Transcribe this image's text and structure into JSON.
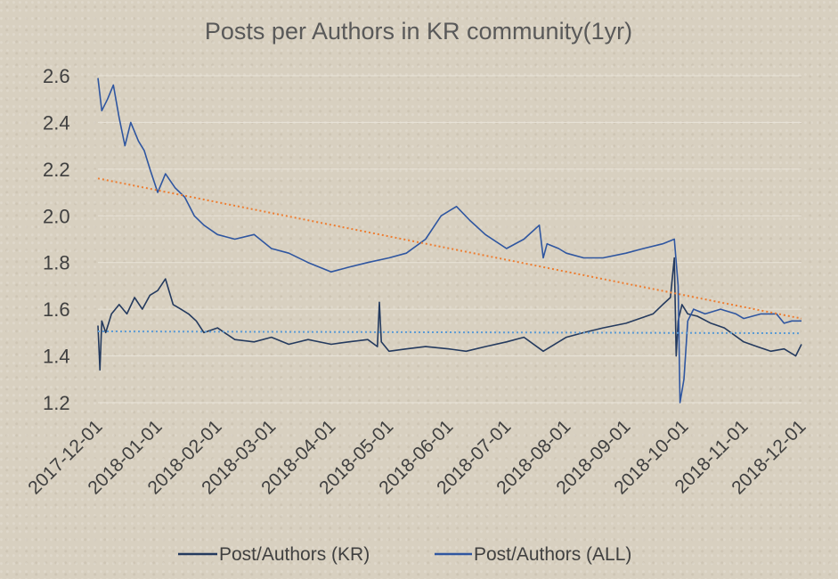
{
  "chart_data": {
    "type": "line",
    "title": "Posts per Authors in KR community(1yr)",
    "xlabel": "",
    "ylabel": "",
    "ylim": [
      1.2,
      2.6
    ],
    "yticks": [
      "1.2",
      "1.4",
      "1.6",
      "1.8",
      "2.0",
      "2.2",
      "2.4",
      "2.6"
    ],
    "xticks": [
      "2017-12-01",
      "2018-01-01",
      "2018-02-01",
      "2018-03-01",
      "2018-04-01",
      "2018-05-01",
      "2018-06-01",
      "2018-07-01",
      "2018-08-01",
      "2018-09-01",
      "2018-10-01",
      "2018-11-01",
      "2018-12-01"
    ],
    "grid": true,
    "legend_position": "bottom",
    "colors": {
      "kr": "#243a5e",
      "all": "#2f56a0",
      "trend_kr": "#5b9bd5",
      "trend_all": "#ed7d31"
    },
    "series": [
      {
        "name": "Post/Authors (KR)",
        "key": "kr",
        "x": [
          "2017-12-01",
          "2017-12-02",
          "2017-12-03",
          "2017-12-05",
          "2017-12-08",
          "2017-12-12",
          "2017-12-16",
          "2017-12-20",
          "2017-12-24",
          "2017-12-28",
          "2018-01-01",
          "2018-01-05",
          "2018-01-09",
          "2018-01-13",
          "2018-01-17",
          "2018-01-21",
          "2018-01-25",
          "2018-02-01",
          "2018-02-10",
          "2018-02-20",
          "2018-03-01",
          "2018-03-10",
          "2018-03-20",
          "2018-04-01",
          "2018-04-10",
          "2018-04-20",
          "2018-04-25",
          "2018-04-26",
          "2018-04-27",
          "2018-05-01",
          "2018-05-10",
          "2018-05-20",
          "2018-06-01",
          "2018-06-10",
          "2018-06-20",
          "2018-07-01",
          "2018-07-10",
          "2018-07-20",
          "2018-08-01",
          "2018-08-10",
          "2018-08-20",
          "2018-09-01",
          "2018-09-08",
          "2018-09-15",
          "2018-09-20",
          "2018-09-24",
          "2018-09-26",
          "2018-09-27",
          "2018-09-28",
          "2018-09-30",
          "2018-10-03",
          "2018-10-08",
          "2018-10-15",
          "2018-10-22",
          "2018-11-01",
          "2018-11-08",
          "2018-11-15",
          "2018-11-22",
          "2018-11-28",
          "2018-12-01"
        ],
        "y": [
          1.53,
          1.34,
          1.55,
          1.5,
          1.58,
          1.62,
          1.58,
          1.65,
          1.6,
          1.66,
          1.68,
          1.73,
          1.62,
          1.6,
          1.58,
          1.55,
          1.5,
          1.52,
          1.47,
          1.46,
          1.48,
          1.45,
          1.47,
          1.45,
          1.46,
          1.47,
          1.44,
          1.63,
          1.46,
          1.42,
          1.43,
          1.44,
          1.43,
          1.42,
          1.44,
          1.46,
          1.48,
          1.42,
          1.48,
          1.5,
          1.52,
          1.54,
          1.56,
          1.58,
          1.62,
          1.65,
          1.82,
          1.4,
          1.55,
          1.62,
          1.58,
          1.57,
          1.54,
          1.52,
          1.46,
          1.44,
          1.42,
          1.43,
          1.4,
          1.45
        ]
      },
      {
        "name": "Post/Authors (ALL)",
        "key": "all",
        "x": [
          "2017-12-01",
          "2017-12-03",
          "2017-12-06",
          "2017-12-09",
          "2017-12-12",
          "2017-12-15",
          "2017-12-18",
          "2017-12-22",
          "2017-12-25",
          "2017-12-28",
          "2018-01-01",
          "2018-01-05",
          "2018-01-10",
          "2018-01-15",
          "2018-01-20",
          "2018-01-25",
          "2018-02-01",
          "2018-02-10",
          "2018-02-20",
          "2018-03-01",
          "2018-03-10",
          "2018-03-20",
          "2018-04-01",
          "2018-04-10",
          "2018-04-20",
          "2018-05-01",
          "2018-05-10",
          "2018-05-20",
          "2018-05-28",
          "2018-06-05",
          "2018-06-12",
          "2018-06-20",
          "2018-07-01",
          "2018-07-10",
          "2018-07-18",
          "2018-07-20",
          "2018-07-22",
          "2018-07-28",
          "2018-08-01",
          "2018-08-10",
          "2018-08-20",
          "2018-09-01",
          "2018-09-10",
          "2018-09-20",
          "2018-09-26",
          "2018-09-28",
          "2018-09-29",
          "2018-10-01",
          "2018-10-03",
          "2018-10-06",
          "2018-10-12",
          "2018-10-20",
          "2018-10-28",
          "2018-11-01",
          "2018-11-10",
          "2018-11-18",
          "2018-11-22",
          "2018-11-26",
          "2018-12-01"
        ],
        "y": [
          2.59,
          2.45,
          2.5,
          2.56,
          2.42,
          2.3,
          2.4,
          2.32,
          2.28,
          2.2,
          2.1,
          2.18,
          2.12,
          2.08,
          2.0,
          1.96,
          1.92,
          1.9,
          1.92,
          1.86,
          1.84,
          1.8,
          1.76,
          1.78,
          1.8,
          1.82,
          1.84,
          1.9,
          2.0,
          2.04,
          1.98,
          1.92,
          1.86,
          1.9,
          1.96,
          1.82,
          1.88,
          1.86,
          1.84,
          1.82,
          1.82,
          1.84,
          1.86,
          1.88,
          1.9,
          1.7,
          1.2,
          1.3,
          1.55,
          1.6,
          1.58,
          1.6,
          1.58,
          1.56,
          1.58,
          1.58,
          1.54,
          1.55,
          1.55
        ]
      },
      {
        "name": "",
        "key": "trend_kr",
        "x": [
          "2017-12-01",
          "2018-12-01"
        ],
        "y": [
          1.505,
          1.497
        ]
      },
      {
        "name": "",
        "key": "trend_all",
        "x": [
          "2017-12-01",
          "2018-12-01"
        ],
        "y": [
          2.16,
          1.56
        ]
      }
    ]
  }
}
